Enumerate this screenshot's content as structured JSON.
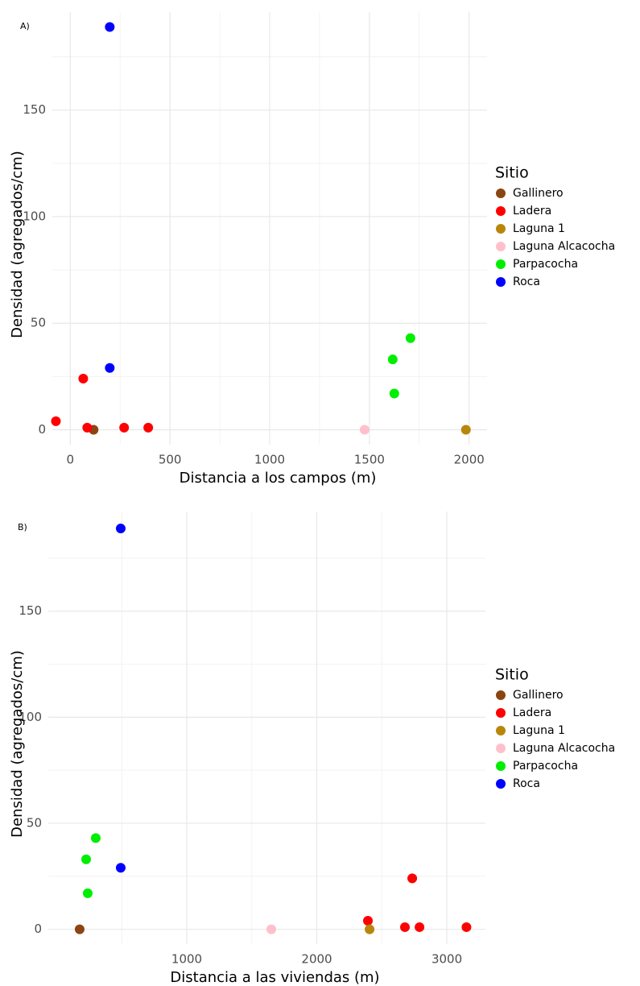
{
  "charts": [
    {
      "type": "scatter",
      "panel_label": "A)",
      "xlabel": "Distancia a los campos (m)",
      "ylabel": "Densidad (agregados/cm)",
      "legend_title": "Sitio",
      "legend": "right",
      "grid": true,
      "xlim": [
        -90,
        2090
      ],
      "ylim": [
        -7,
        196
      ],
      "xticks": [
        0,
        500,
        1000,
        1500,
        2000
      ],
      "yticks": [
        0,
        50,
        100,
        150
      ],
      "minor_xticks": [
        250,
        750,
        1250,
        1750
      ],
      "minor_yticks": [
        25,
        75,
        125,
        175
      ],
      "series": [
        {
          "name": "Gallinero",
          "color": "#8b4513",
          "x": [
            117
          ],
          "values": [
            0
          ]
        },
        {
          "name": "Ladera",
          "color": "#ff0000",
          "x": [
            65,
            -72,
            85,
            270,
            391
          ],
          "values": [
            24,
            4,
            1,
            1,
            1
          ]
        },
        {
          "name": "Laguna 1",
          "color": "#b8860b",
          "x": [
            1984
          ],
          "values": [
            0
          ]
        },
        {
          "name": "Laguna Alcacocha",
          "color": "#ffc0cb",
          "x": [
            1476
          ],
          "values": [
            0
          ]
        },
        {
          "name": "Parpacocha",
          "color": "#00ee00",
          "x": [
            1617,
            1625,
            1706
          ],
          "values": [
            33,
            17,
            43
          ]
        },
        {
          "name": "Roca",
          "color": "#0000ff",
          "x": [
            198,
            198
          ],
          "values": [
            189,
            29
          ]
        }
      ]
    },
    {
      "type": "scatter",
      "panel_label": "B)",
      "xlabel": "Distancia a las viviendas (m)",
      "ylabel": "Densidad (agregados/cm)",
      "legend_title": "Sitio",
      "legend": "right",
      "grid": true,
      "xlim": [
        -65,
        3297
      ],
      "ylim": [
        -7,
        197
      ],
      "xticks": [
        1000,
        2000,
        3000
      ],
      "yticks": [
        0,
        50,
        100,
        150
      ],
      "minor_xticks": [
        500,
        1500,
        2500
      ],
      "minor_yticks": [
        25,
        75,
        125,
        175
      ],
      "series": [
        {
          "name": "Gallinero",
          "color": "#8b4513",
          "x": [
            176
          ],
          "values": [
            0
          ]
        },
        {
          "name": "Ladera",
          "color": "#ff0000",
          "x": [
            2393,
            2678,
            2734,
            2790,
            3151
          ],
          "values": [
            4,
            1,
            24,
            1,
            1
          ]
        },
        {
          "name": "Laguna 1",
          "color": "#b8860b",
          "x": [
            2406
          ],
          "values": [
            0
          ]
        },
        {
          "name": "Laguna Alcacocha",
          "color": "#ffc0cb",
          "x": [
            1650
          ],
          "values": [
            0
          ]
        },
        {
          "name": "Parpacocha",
          "color": "#00ee00",
          "x": [
            300,
            226,
            238
          ],
          "values": [
            43,
            33,
            17
          ]
        },
        {
          "name": "Roca",
          "color": "#0000ff",
          "x": [
            492,
            492
          ],
          "values": [
            189,
            29
          ]
        }
      ]
    }
  ]
}
